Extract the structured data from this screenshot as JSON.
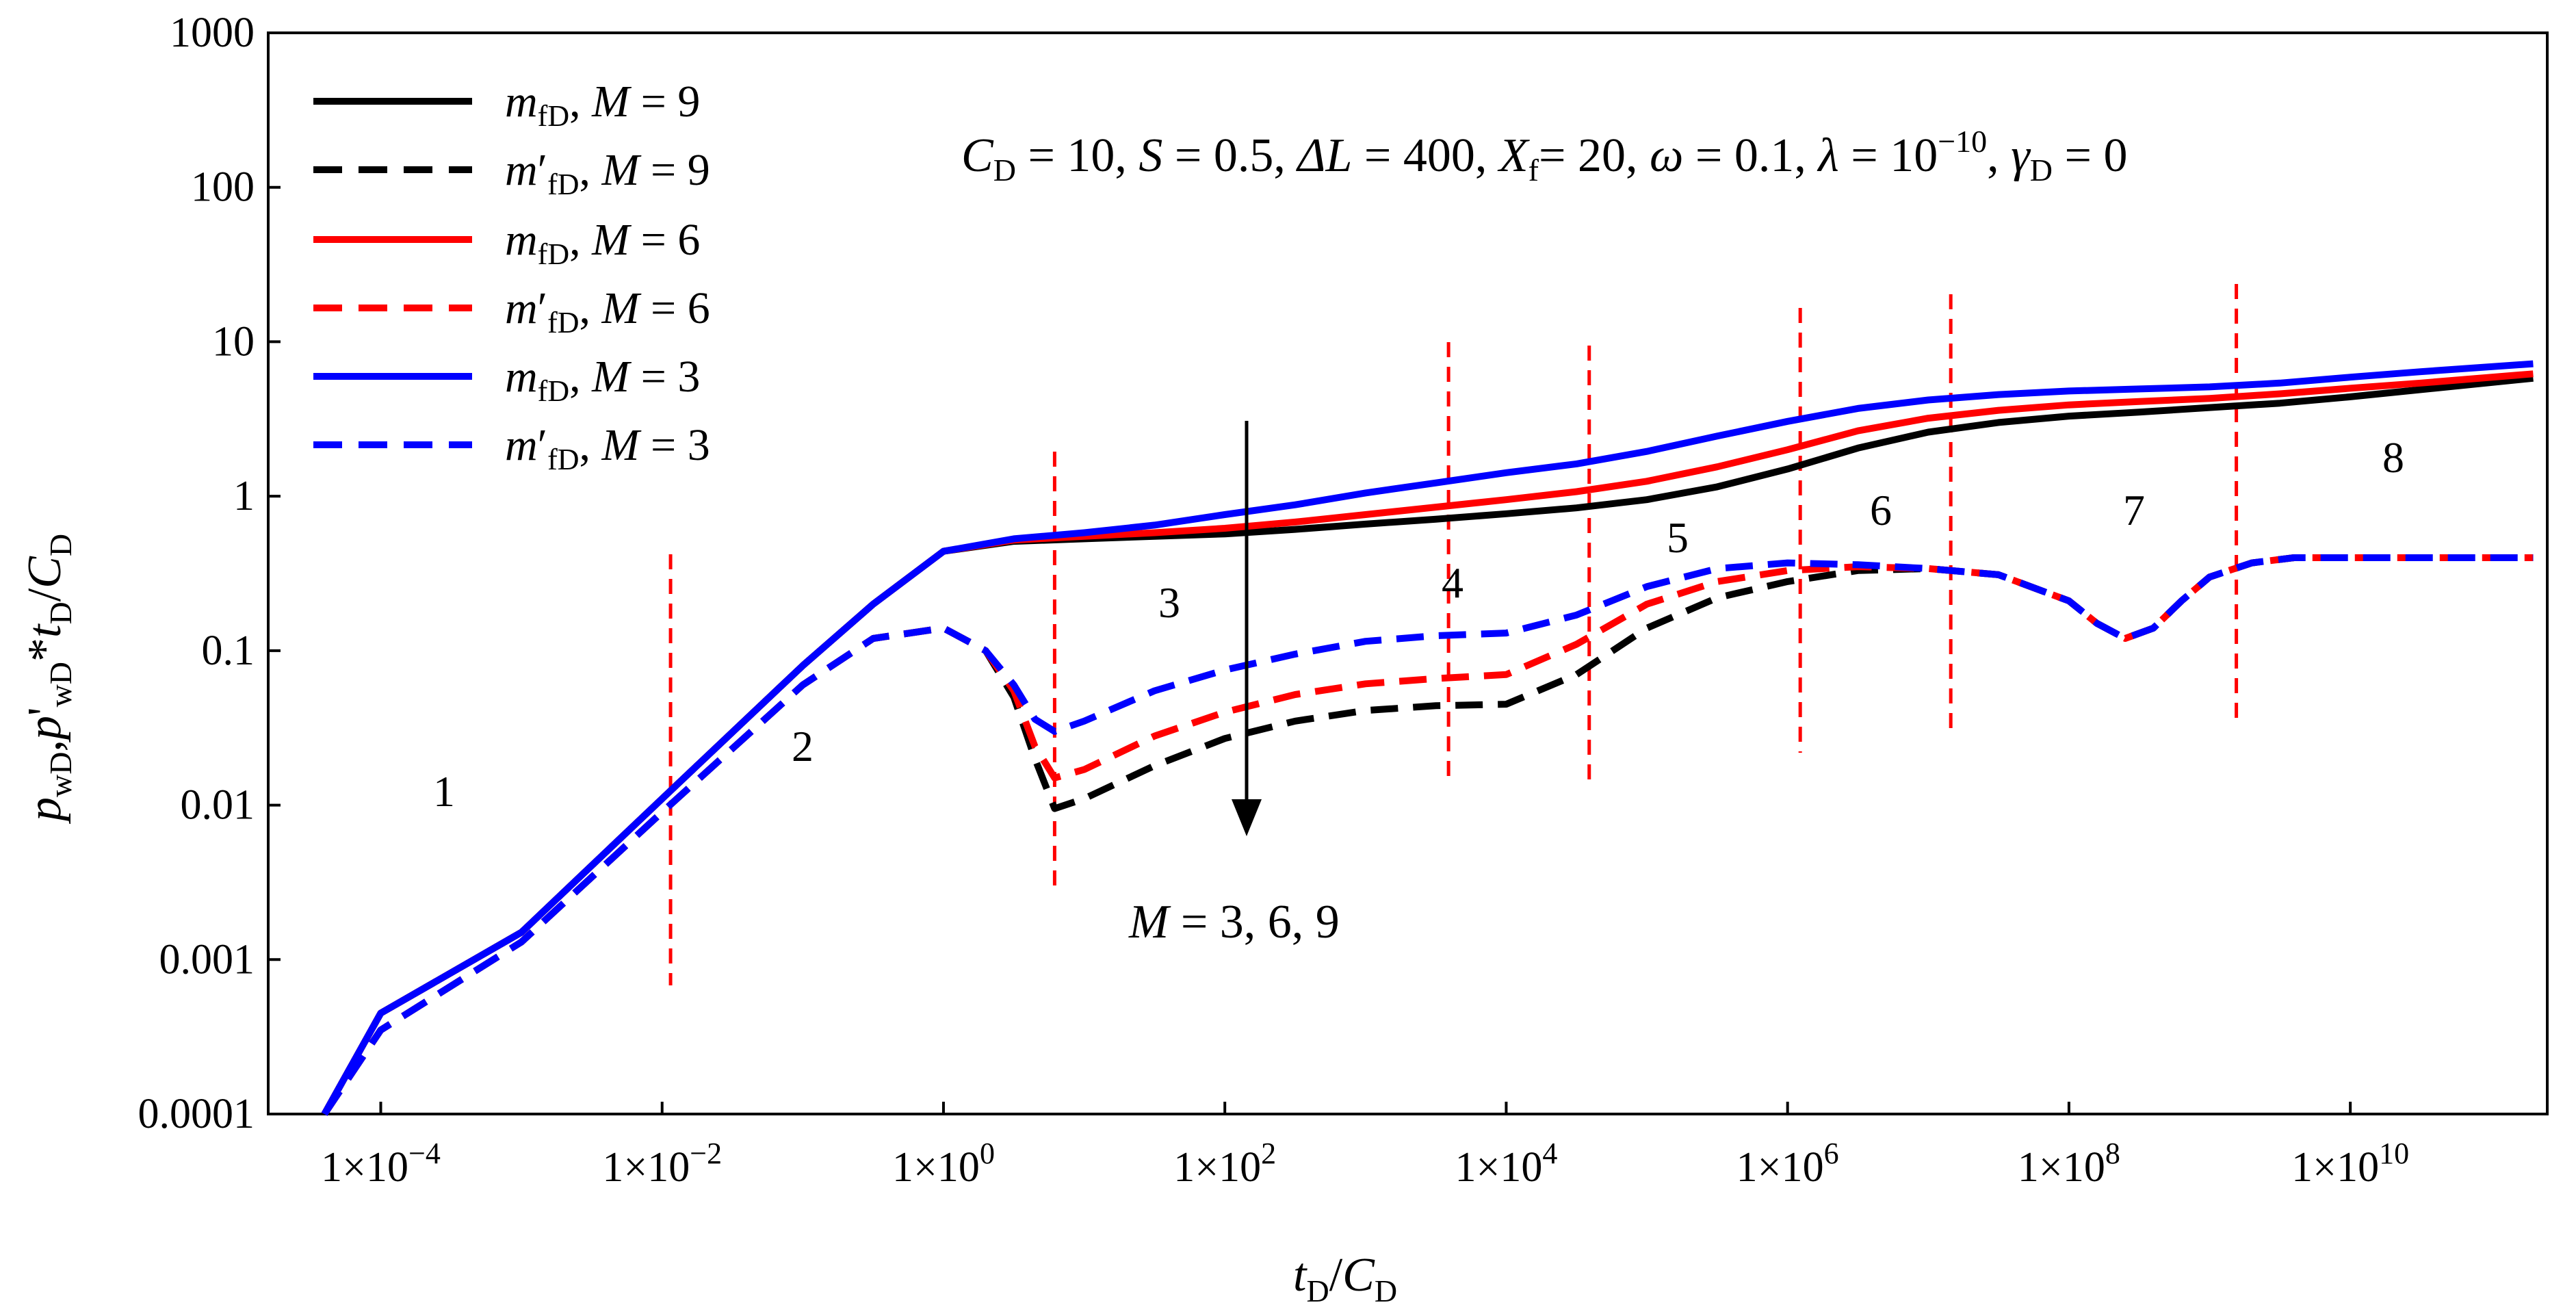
{
  "chart_data": {
    "type": "line",
    "xscale": "log",
    "yscale": "log",
    "xlim_log10": [
      -4.8,
      11.4
    ],
    "ylim": [
      0.0001,
      1000
    ],
    "xlabel": {
      "main": "t",
      "sub": "D",
      "sep": "/",
      "main2": "C",
      "sub2": "D"
    },
    "ylabel": {
      "p": "p",
      "sub1": "wD",
      "comma": ",",
      "p2": "p",
      "prime": "'",
      "sub2": "wD",
      "star": "*",
      "t": "t",
      "sub3": "D",
      "slash": "/",
      "c": "C",
      "sub4": "D"
    },
    "x_ticks": [
      {
        "value": 0.0001,
        "text": "1×10",
        "exp": "−4"
      },
      {
        "value": 0.01,
        "text": "1×10",
        "exp": "−2"
      },
      {
        "value": 1,
        "text": "1×10",
        "exp": "0"
      },
      {
        "value": 100,
        "text": "1×10",
        "exp": "2"
      },
      {
        "value": 10000,
        "text": "1×10",
        "exp": "4"
      },
      {
        "value": 1000000,
        "text": "1×10",
        "exp": "6"
      },
      {
        "value": 100000000,
        "text": "1×10",
        "exp": "8"
      },
      {
        "value": 10000000000,
        "text": "1×10",
        "exp": "10"
      }
    ],
    "y_ticks": [
      {
        "value": 0.0001,
        "text": "0.0001"
      },
      {
        "value": 0.001,
        "text": "0.001"
      },
      {
        "value": 0.01,
        "text": "0.01"
      },
      {
        "value": 0.1,
        "text": "0.1"
      },
      {
        "value": 1,
        "text": "1"
      },
      {
        "value": 10,
        "text": "10"
      },
      {
        "value": 100,
        "text": "100"
      },
      {
        "value": 1000,
        "text": "1000"
      }
    ],
    "params_text": {
      "cd_main": "C",
      "cd_sub": "D",
      "cd_val": " = 10, ",
      "s_main": "S",
      "s_val": " = 0.5, ",
      "dl_main": "ΔL",
      "dl_val": " = 400, ",
      "xf_main": "X",
      "xf_sub": "f",
      "xf_val": "= 20, ",
      "w_main": "ω",
      "w_val": " = 0.1, ",
      "l_main": "λ",
      "l_val": " = 10",
      "l_exp": "−10",
      "l_sep": ", ",
      "g_main": "γ",
      "g_sub": "D",
      "g_val": " = 0"
    },
    "arrow_label": {
      "m": "M",
      "text": " = 3, 6, 9"
    },
    "region_labels": [
      "1",
      "2",
      "3",
      "4",
      "5",
      "6",
      "7",
      "8"
    ],
    "region_dividers_log10x": [
      -1.94,
      0.79,
      3.59,
      4.59,
      6.09,
      7.16,
      9.19
    ],
    "series": [
      {
        "name": "mfD, M = 9",
        "legend_main": "m",
        "legend_prime": "",
        "legend_sub": "fD",
        "legend_m": "M",
        "legend_val": " = 9",
        "color": "#000000",
        "dash": false,
        "log10x": [
          -4.4,
          -4,
          -3,
          -2,
          -1,
          -0.5,
          0,
          0.5,
          1,
          1.5,
          2,
          2.5,
          3,
          3.5,
          4,
          4.5,
          5,
          5.5,
          6,
          6.5,
          7,
          7.5,
          8,
          8.5,
          9,
          9.5,
          10,
          10.5,
          11.3
        ],
        "y": [
          0.0001,
          0.00045,
          0.0015,
          0.011,
          0.08,
          0.2,
          0.44,
          0.51,
          0.53,
          0.55,
          0.57,
          0.61,
          0.66,
          0.71,
          0.77,
          0.84,
          0.95,
          1.15,
          1.5,
          2.05,
          2.6,
          3.0,
          3.3,
          3.5,
          3.75,
          4.0,
          4.4,
          4.9,
          5.8
        ]
      },
      {
        "name": "m′fD, M = 9",
        "legend_main": "m",
        "legend_prime": "′",
        "legend_sub": "fD",
        "legend_m": "M",
        "legend_val": " = 9",
        "color": "#000000",
        "dash": true,
        "log10x": [
          -4.4,
          -4,
          -3,
          -2,
          -1,
          -0.5,
          0,
          0.3,
          0.5,
          0.65,
          0.79,
          1,
          1.5,
          2,
          2.5,
          3,
          3.5,
          4,
          4.5,
          5,
          5.5,
          6,
          6.5,
          7,
          7.5,
          8,
          8.2,
          8.4,
          8.6,
          8.8,
          9,
          9.3,
          9.6,
          10,
          10.5,
          11.3
        ],
        "y": [
          0.0001,
          0.00035,
          0.0013,
          0.009,
          0.06,
          0.12,
          0.14,
          0.1,
          0.05,
          0.02,
          0.0095,
          0.011,
          0.018,
          0.027,
          0.035,
          0.041,
          0.044,
          0.045,
          0.07,
          0.14,
          0.22,
          0.28,
          0.33,
          0.34,
          0.31,
          0.21,
          0.15,
          0.12,
          0.14,
          0.21,
          0.3,
          0.37,
          0.4,
          0.4,
          0.4,
          0.4
        ]
      },
      {
        "name": "mfD, M = 6",
        "legend_main": "m",
        "legend_prime": "",
        "legend_sub": "fD",
        "legend_m": "M",
        "legend_val": " = 6",
        "color": "#ff0000",
        "dash": false,
        "log10x": [
          -4.4,
          -4,
          -3,
          -2,
          -1,
          -0.5,
          0,
          0.5,
          1,
          1.5,
          2,
          2.5,
          3,
          3.5,
          4,
          4.5,
          5,
          5.5,
          6,
          6.5,
          7,
          7.5,
          8,
          8.5,
          9,
          9.5,
          10,
          10.5,
          11.3
        ],
        "y": [
          0.0001,
          0.00045,
          0.0015,
          0.011,
          0.08,
          0.2,
          0.44,
          0.52,
          0.55,
          0.58,
          0.62,
          0.68,
          0.76,
          0.85,
          0.95,
          1.07,
          1.25,
          1.55,
          2.0,
          2.65,
          3.2,
          3.6,
          3.9,
          4.1,
          4.3,
          4.6,
          5.0,
          5.4,
          6.2
        ]
      },
      {
        "name": "m′fD, M = 6",
        "legend_main": "m",
        "legend_prime": "′",
        "legend_sub": "fD",
        "legend_m": "M",
        "legend_val": " = 6",
        "color": "#ff0000",
        "dash": true,
        "log10x": [
          -4.4,
          -4,
          -3,
          -2,
          -1,
          -0.5,
          0,
          0.3,
          0.5,
          0.65,
          0.79,
          1,
          1.5,
          2,
          2.5,
          3,
          3.5,
          4,
          4.5,
          5,
          5.5,
          6,
          6.5,
          7,
          7.5,
          8,
          8.2,
          8.4,
          8.6,
          8.8,
          9,
          9.3,
          9.6,
          10,
          10.5,
          11.3
        ],
        "y": [
          0.0001,
          0.00035,
          0.0013,
          0.009,
          0.06,
          0.12,
          0.14,
          0.1,
          0.055,
          0.024,
          0.015,
          0.017,
          0.028,
          0.04,
          0.052,
          0.061,
          0.066,
          0.07,
          0.11,
          0.2,
          0.28,
          0.33,
          0.35,
          0.34,
          0.31,
          0.21,
          0.15,
          0.12,
          0.14,
          0.21,
          0.3,
          0.37,
          0.4,
          0.4,
          0.4,
          0.4
        ]
      },
      {
        "name": "mfD, M = 3",
        "legend_main": "m",
        "legend_prime": "",
        "legend_sub": "fD",
        "legend_m": "M",
        "legend_val": " = 3",
        "color": "#0000ff",
        "dash": false,
        "log10x": [
          -4.4,
          -4,
          -3,
          -2,
          -1,
          -0.5,
          0,
          0.5,
          1,
          1.5,
          2,
          2.5,
          3,
          3.5,
          4,
          4.5,
          5,
          5.5,
          6,
          6.5,
          7,
          7.5,
          8,
          8.5,
          9,
          9.5,
          10,
          10.5,
          11.3
        ],
        "y": [
          0.0001,
          0.00045,
          0.0015,
          0.011,
          0.08,
          0.2,
          0.44,
          0.53,
          0.58,
          0.65,
          0.76,
          0.88,
          1.05,
          1.22,
          1.42,
          1.62,
          1.95,
          2.45,
          3.05,
          3.7,
          4.2,
          4.55,
          4.8,
          4.95,
          5.1,
          5.4,
          5.9,
          6.4,
          7.2
        ]
      },
      {
        "name": "m′fD, M = 3",
        "legend_main": "m",
        "legend_prime": "′",
        "legend_sub": "fD",
        "legend_m": "M",
        "legend_val": " = 3",
        "color": "#0000ff",
        "dash": true,
        "log10x": [
          -4.4,
          -4,
          -3,
          -2,
          -1,
          -0.5,
          0,
          0.3,
          0.5,
          0.65,
          0.79,
          1,
          1.5,
          2,
          2.5,
          3,
          3.5,
          4,
          4.5,
          5,
          5.5,
          6,
          6.5,
          7,
          7.5,
          8,
          8.2,
          8.4,
          8.6,
          8.8,
          9,
          9.3,
          9.6,
          10,
          10.5,
          11.3
        ],
        "y": [
          0.0001,
          0.00035,
          0.0013,
          0.009,
          0.06,
          0.12,
          0.14,
          0.1,
          0.06,
          0.036,
          0.03,
          0.035,
          0.055,
          0.075,
          0.095,
          0.115,
          0.125,
          0.13,
          0.17,
          0.26,
          0.34,
          0.37,
          0.36,
          0.34,
          0.31,
          0.21,
          0.15,
          0.12,
          0.14,
          0.21,
          0.3,
          0.37,
          0.4,
          0.4,
          0.4,
          0.4
        ]
      }
    ]
  }
}
